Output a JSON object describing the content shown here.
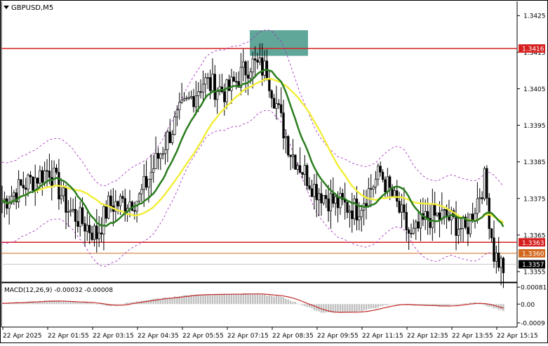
{
  "window": {
    "symbol_title": "GBPUSD,M5",
    "icon": "dropdown-triangle-icon"
  },
  "price_axis": {
    "ticks": [
      "1.3425",
      "1.3415",
      "1.3405",
      "1.3395",
      "1.3385",
      "1.3375",
      "1.3365",
      "1.3355"
    ],
    "range": [
      1.33525,
      1.34285
    ]
  },
  "price_labels": {
    "upper_level": "1.3416",
    "lower_level": "1.3363",
    "orange_level": "1.3360",
    "current_price": "1.3357"
  },
  "macd": {
    "title": "MACD(12,26,9) -0.00032 -0.00008",
    "ticks": [
      "0.00081",
      "0.00",
      "-0.0009"
    ],
    "range": [
      -0.0011,
      0.00095
    ]
  },
  "time_axis": {
    "labels": [
      "22 Apr 2025",
      "22 Apr 01:55",
      "22 Apr 03:15",
      "22 Apr 04:35",
      "22 Apr 05:55",
      "22 Apr 07:15",
      "22 Apr 08:35",
      "22 Apr 09:55",
      "22 Apr 11:15",
      "22 Apr 12:35",
      "22 Apr 13:55",
      "22 Apr 15:15"
    ]
  },
  "colors": {
    "level_line": "#d62020",
    "orange_line": "#d2691e",
    "ma_fast": "#2a7d1e",
    "ma_slow": "#f2ee3c",
    "envelope": "#a020c0",
    "highlight_box": "#4f9d8f",
    "macd_hist": "#c0c0c0",
    "macd_signal": "#c0282a"
  },
  "chart_data": {
    "type": "candlestick",
    "symbol": "GBPUSD",
    "timeframe": "M5",
    "levels": [
      1.3416,
      1.3363,
      1.336
    ],
    "current_price": 1.3357,
    "highlight_zone": {
      "from": 1.3414,
      "to": 1.3421
    },
    "anchors": [
      [
        0,
        1.3374
      ],
      [
        10,
        1.3379
      ],
      [
        20,
        1.3383
      ],
      [
        28,
        1.3372
      ],
      [
        40,
        1.3365
      ],
      [
        45,
        1.3373
      ],
      [
        58,
        1.3375
      ],
      [
        65,
        1.3385
      ],
      [
        75,
        1.3398
      ],
      [
        85,
        1.3407
      ],
      [
        95,
        1.3404
      ],
      [
        105,
        1.3412
      ],
      [
        112,
        1.341
      ],
      [
        118,
        1.3396
      ],
      [
        122,
        1.3388
      ],
      [
        132,
        1.3378
      ],
      [
        140,
        1.3374
      ],
      [
        150,
        1.3372
      ],
      [
        160,
        1.3382
      ],
      [
        167,
        1.3373
      ],
      [
        173,
        1.3364
      ],
      [
        180,
        1.337
      ],
      [
        188,
        1.337
      ],
      [
        196,
        1.3366
      ],
      [
        200,
        1.3373
      ],
      [
        204,
        1.338
      ],
      [
        208,
        1.336
      ],
      [
        212,
        1.3356
      ]
    ],
    "macd_anchors": [
      [
        0,
        5e-05
      ],
      [
        20,
        0.00015
      ],
      [
        35,
        8e-05
      ],
      [
        45,
        -0.0001
      ],
      [
        60,
        0.00018
      ],
      [
        80,
        0.00045
      ],
      [
        105,
        0.0005
      ],
      [
        118,
        0.00035
      ],
      [
        135,
        -0.0004
      ],
      [
        150,
        -0.00038
      ],
      [
        165,
        0.0
      ],
      [
        185,
        -0.00012
      ],
      [
        200,
        8e-05
      ],
      [
        212,
        -0.00032
      ]
    ]
  }
}
